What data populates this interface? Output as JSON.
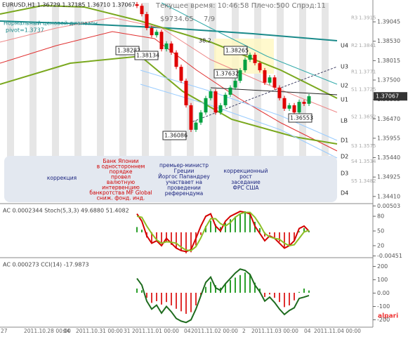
{
  "header": {
    "symbol_line": "EURUSD,H1 1.36729 1.37185 1.36710 1.37067",
    "status": "Текущее время: 10:46:58 Плечо:500 Спрэд:11",
    "balance": "$9734.65",
    "count": "7/9",
    "range_title": "Нормальный ценовой диапазон",
    "pivot": "pivot=1.3737"
  },
  "chart_data": [
    {
      "type": "candlestick",
      "up_color": "#00a040",
      "down_color": "#e00000",
      "open": [
        1.3951,
        1.3947,
        1.3925,
        1.3888,
        1.3869,
        1.3878,
        1.3832,
        1.3847,
        1.3823,
        1.3785,
        1.3748,
        1.3683,
        1.3618,
        1.3637,
        1.3664,
        1.3702,
        1.372,
        1.3664,
        1.3683,
        1.3711,
        1.373,
        1.3748,
        1.3776,
        1.3804,
        1.3817,
        1.3795,
        1.3776,
        1.3743,
        1.3757,
        1.373,
        1.3702,
        1.3674,
        1.3683,
        1.3664,
        1.3692,
        1.3687
      ],
      "high": [
        1.3957,
        1.3953,
        1.3931,
        1.3894,
        1.3884,
        1.3884,
        1.3853,
        1.3853,
        1.3829,
        1.3791,
        1.3754,
        1.3689,
        1.3643,
        1.367,
        1.3708,
        1.3726,
        1.3726,
        1.3689,
        1.3717,
        1.3736,
        1.3754,
        1.3782,
        1.381,
        1.3823,
        1.3823,
        1.3801,
        1.3782,
        1.3763,
        1.3763,
        1.3736,
        1.3708,
        1.3689,
        1.3689,
        1.3698,
        1.3698,
        1.3713
      ],
      "low": [
        1.3941,
        1.3919,
        1.3882,
        1.3863,
        1.3863,
        1.3826,
        1.3826,
        1.3817,
        1.3779,
        1.3742,
        1.3677,
        1.3612,
        1.3612,
        1.3631,
        1.3658,
        1.3696,
        1.3658,
        1.3658,
        1.3677,
        1.3705,
        1.3724,
        1.3742,
        1.377,
        1.3798,
        1.3789,
        1.377,
        1.3737,
        1.3737,
        1.3724,
        1.3696,
        1.3668,
        1.3668,
        1.3658,
        1.3658,
        1.3681,
        1.3681
      ],
      "close": [
        1.3947,
        1.3925,
        1.3888,
        1.3869,
        1.3878,
        1.3832,
        1.3847,
        1.3823,
        1.3785,
        1.3748,
        1.3683,
        1.3618,
        1.3637,
        1.3664,
        1.3702,
        1.372,
        1.3664,
        1.3683,
        1.3711,
        1.373,
        1.3748,
        1.3776,
        1.3804,
        1.3817,
        1.3795,
        1.3776,
        1.3743,
        1.3757,
        1.373,
        1.3702,
        1.3674,
        1.3683,
        1.3664,
        1.3692,
        1.3687,
        1.3707
      ],
      "ylim": [
        1.3422,
        1.3955
      ],
      "yticks": [
        1.39045,
        {
          "value": 1.3853,
          "label": "1.38530"
        },
        1.38015,
        {
          "value": 1.375,
          "label": "1.37500"
        },
        1.36985,
        {
          "value": 1.3647,
          "label": "1.36470"
        },
        1.35955,
        {
          "value": 1.3544,
          "label": "1.35440"
        },
        1.34925,
        {
          "value": 1.3441,
          "label": "1.34410"
        }
      ],
      "last_price": 1.37067,
      "levels": [
        {
          "name": "R3",
          "value": 1.3915
        },
        {
          "name": "R2",
          "value": 1.3841
        },
        {
          "name": "R1",
          "value": 1.3771
        },
        {
          "name": "S1",
          "value": 1.3725
        },
        {
          "name": "S2",
          "value": 1.3652
        },
        {
          "name": "S3",
          "value": 1.3575
        },
        {
          "name": "S4",
          "value": 1.3534
        },
        {
          "name": "S5",
          "value": 1.3482
        }
      ],
      "channel_labels": [
        "U4",
        "U3",
        "U2",
        "U1",
        "LB",
        "D1",
        "D2",
        "D3",
        "D4"
      ],
      "price_labels": [
        1.38282,
        1.38134,
        1.38265,
        1.37632,
        1.36553,
        1.36086
      ],
      "fib_label": 38.2
    },
    {
      "type": "stochastic",
      "title": "AC 0.0002344 Stoch(5,3,3) 49.6880 51.4082",
      "series": [
        {
          "color": "#d40000",
          "values": [
            85,
            70,
            40,
            25,
            30,
            20,
            35,
            25,
            15,
            10,
            8,
            12,
            35,
            60,
            80,
            85,
            60,
            50,
            70,
            80,
            85,
            90,
            88,
            85,
            60,
            45,
            30,
            40,
            35,
            25,
            15,
            20,
            30,
            55,
            60,
            49.688
          ]
        },
        {
          "color": "#8cbf26",
          "values": [
            80,
            78,
            60,
            45,
            32,
            25,
            28,
            27,
            25,
            17,
            11,
            10,
            18,
            36,
            58,
            75,
            75,
            65,
            60,
            67,
            78,
            85,
            88,
            88,
            78,
            63,
            45,
            38,
            35,
            33,
            25,
            20,
            22,
            35,
            48,
            51.4082
          ]
        }
      ],
      "histogram": {
        "axis": "y2",
        "up_color": "#2ca02c",
        "down_color": "#e03030",
        "values": [
          0.001,
          0.0005,
          -0.001,
          -0.002,
          -0.0015,
          -0.0022,
          -0.0018,
          -0.0024,
          -0.003,
          -0.0035,
          -0.004,
          -0.0038,
          -0.0025,
          -0.0005,
          0.0012,
          0.0022,
          0.0015,
          0.001,
          0.0018,
          0.0025,
          0.003,
          0.0036,
          0.004,
          0.0038,
          0.002,
          0.0008,
          -0.0008,
          -0.0004,
          -0.001,
          -0.0018,
          -0.0028,
          -0.0025,
          -0.0015,
          0.0002,
          0.0008,
          0.0002344
        ]
      },
      "ylim": [
        -3,
        103
      ],
      "yticks": [
        80,
        50,
        20
      ],
      "y2lim": [
        -0.0047,
        0.0052
      ],
      "y2ticks": [
        0.00503,
        -0.00451
      ]
    },
    {
      "type": "cci",
      "title": "AC 0.000273 CCI(14) -17.9873",
      "series": [
        {
          "color": "#1e6b1e",
          "values": [
            110,
            60,
            -60,
            -120,
            -90,
            -150,
            -100,
            -140,
            -190,
            -210,
            -220,
            -200,
            -120,
            -20,
            80,
            120,
            40,
            20,
            70,
            110,
            150,
            180,
            170,
            140,
            60,
            10,
            -60,
            -30,
            -70,
            -120,
            -160,
            -130,
            -110,
            -40,
            -30,
            -17.9873
          ]
        }
      ],
      "histogram": {
        "axis": "y2",
        "up_color": "#2ca02c",
        "down_color": "#e03030",
        "values": [
          0.0005,
          0.0003,
          -0.0006,
          -0.0012,
          -0.001,
          -0.0014,
          -0.0011,
          -0.0015,
          -0.0019,
          -0.0022,
          -0.0025,
          -0.0023,
          -0.0015,
          -0.0003,
          0.0007,
          0.0013,
          0.0009,
          0.0006,
          0.0011,
          0.0015,
          0.0018,
          0.0021,
          0.0024,
          0.0022,
          0.0012,
          0.0005,
          -0.0005,
          -0.0002,
          -0.0006,
          -0.0011,
          -0.0017,
          -0.0015,
          -0.0009,
          0.0001,
          0.0005,
          0.000273
        ]
      },
      "ylim": [
        -250,
        255
      ],
      "yticks": [
        200,
        100,
        {
          "value": 0,
          "label": "0.00"
        },
        -100,
        -200
      ],
      "y2lim": [
        -0.004,
        0.004
      ]
    }
  ],
  "annotations": [
    {
      "color": "#1a237e",
      "lines": [
        "коррекция"
      ]
    },
    {
      "color": "#d00000",
      "lines": [
        "Банк Японии",
        "в одностороннем",
        "порядке",
        "провел",
        "валютную",
        "интервенцию",
        "банкротства MF Global",
        "сниж. фонд. инд."
      ]
    },
    {
      "color": "#1a237e",
      "lines": [
        "премьер-министр",
        "Греции",
        "Йоргос Папандреу",
        "участвает на",
        "проведении",
        "референдума"
      ]
    },
    {
      "color": "#1a237e",
      "lines": [
        "коррекционный",
        "рост",
        "заседание",
        "ФРС США"
      ]
    }
  ],
  "time_labels": [
    "27",
    "2011.10.28 00:00",
    "04",
    "2011.10.31 00:00",
    "31",
    "2011.11.01 00:00",
    "04",
    "2011.11.02 00:00",
    "2",
    "2011.11.03 00:00",
    "04",
    "2011.11.04 00:00"
  ],
  "logo": "alpari"
}
